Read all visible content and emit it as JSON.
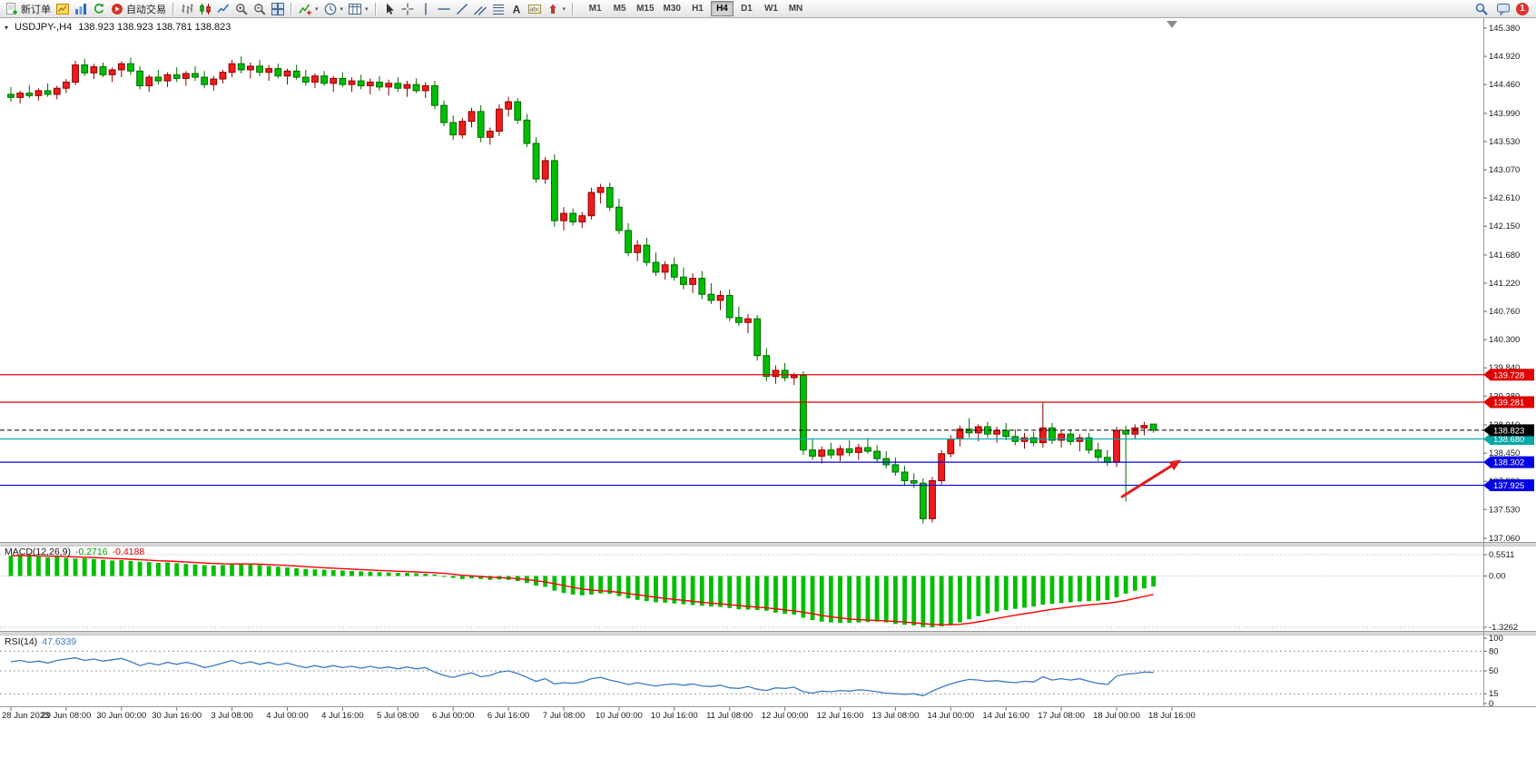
{
  "toolbar": {
    "items": [
      {
        "name": "new-order-button",
        "icon": "new-order-icon",
        "label": "新订单"
      },
      {
        "name": "chart-template-button",
        "icon": "chart-template-icon"
      },
      {
        "name": "market-watch-button",
        "icon": "market-watch-icon"
      },
      {
        "name": "refresh-button",
        "icon": "refresh-icon"
      },
      {
        "name": "auto-trading-button",
        "icon": "auto-trading-icon",
        "label": "自动交易"
      },
      {
        "sep": true
      },
      {
        "name": "bar-chart-button",
        "icon": "bar-chart-icon"
      },
      {
        "name": "candlestick-chart-button",
        "icon": "candlestick-chart-icon"
      },
      {
        "name": "line-chart-button",
        "icon": "line-chart-icon"
      },
      {
        "name": "zoom-in-button",
        "icon": "zoom-in-icon"
      },
      {
        "name": "zoom-out-button",
        "icon": "zoom-out-icon"
      },
      {
        "name": "tile-windows-button",
        "icon": "tile-windows-icon"
      },
      {
        "sep": true
      },
      {
        "name": "indicators-button",
        "icon": "indicators-icon",
        "dropdown": true
      },
      {
        "name": "periods-button",
        "icon": "clock-icon",
        "dropdown": true
      },
      {
        "name": "templates-button",
        "icon": "templates-icon",
        "dropdown": true
      },
      {
        "sep": true
      },
      {
        "name": "cursor-button",
        "icon": "cursor-icon"
      },
      {
        "name": "crosshair-button",
        "icon": "crosshair-icon"
      },
      {
        "name": "vertical-line-button",
        "icon": "vertical-line-icon"
      },
      {
        "name": "horizontal-line-button",
        "icon": "horizontal-line-icon"
      },
      {
        "name": "trendline-button",
        "icon": "trendline-icon"
      },
      {
        "name": "channel-button",
        "icon": "channel-icon"
      },
      {
        "name": "fibonacci-button",
        "icon": "fibonacci-icon"
      },
      {
        "name": "text-button",
        "icon": "text-icon"
      },
      {
        "name": "text-label-button",
        "icon": "text-label-icon"
      },
      {
        "name": "arrows-button",
        "icon": "arrow-up-icon",
        "dropdown": true
      },
      {
        "sep": true
      }
    ],
    "timeframes": [
      "M1",
      "M5",
      "M15",
      "M30",
      "H1",
      "H4",
      "D1",
      "W1",
      "MN"
    ],
    "active_timeframe": "H4",
    "right_icons": [
      "search-icon",
      "chat-icon"
    ],
    "notification_count": "1"
  },
  "chart": {
    "symbol": "USDJPY-,H4",
    "ohlc_text": "138.923 138.923 138.781 138.823",
    "macd_name": "MACD(12,26,9)",
    "macd_main": "-0.2716",
    "macd_signal": "-0.4188",
    "rsi_name": "RSI(14)",
    "rsi_value": "47.6339"
  },
  "chart_data": {
    "type": "candlestick",
    "symbol": "USDJPY",
    "timeframe": "H4",
    "y_range": [
      137.06,
      145.38
    ],
    "price_axis_ticks": [
      "145.380",
      "144.920",
      "144.460",
      "143.990",
      "143.530",
      "143.070",
      "142.610",
      "142.150",
      "141.680",
      "141.220",
      "140.760",
      "140.300",
      "139.840",
      "139.380",
      "138.910",
      "138.450",
      "137.990",
      "137.530",
      "137.060"
    ],
    "time_labels": [
      "28 Jun 2023",
      "29 Jun 08:00",
      "30 Jun 00:00",
      "30 Jun 16:00",
      "3 Jul 08:00",
      "4 Jul 00:00",
      "4 Jul 16:00",
      "5 Jul 08:00",
      "6 Jul 00:00",
      "6 Jul 16:00",
      "7 Jul 08:00",
      "10 Jul 00:00",
      "10 Jul 16:00",
      "11 Jul 08:00",
      "12 Jul 00:00",
      "12 Jul 16:00",
      "13 Jul 08:00",
      "14 Jul 00:00",
      "14 Jul 16:00",
      "17 Jul 08:00",
      "18 Jul 00:00",
      "18 Jul 16:00"
    ],
    "candles_per_label": 6,
    "ohlc": [
      [
        144.3,
        144.42,
        144.18,
        144.25
      ],
      [
        144.25,
        144.36,
        144.15,
        144.32
      ],
      [
        144.32,
        144.45,
        144.24,
        144.28
      ],
      [
        144.28,
        144.4,
        144.2,
        144.36
      ],
      [
        144.36,
        144.48,
        144.26,
        144.3
      ],
      [
        144.3,
        144.44,
        144.22,
        144.4
      ],
      [
        144.4,
        144.55,
        144.32,
        144.5
      ],
      [
        144.5,
        144.85,
        144.45,
        144.78
      ],
      [
        144.78,
        144.88,
        144.6,
        144.65
      ],
      [
        144.65,
        144.8,
        144.55,
        144.75
      ],
      [
        144.75,
        144.82,
        144.58,
        144.62
      ],
      [
        144.62,
        144.74,
        144.5,
        144.7
      ],
      [
        144.7,
        144.84,
        144.58,
        144.8
      ],
      [
        144.8,
        144.9,
        144.62,
        144.68
      ],
      [
        144.68,
        144.76,
        144.38,
        144.44
      ],
      [
        144.44,
        144.62,
        144.34,
        144.58
      ],
      [
        144.58,
        144.7,
        144.46,
        144.52
      ],
      [
        144.52,
        144.66,
        144.42,
        144.62
      ],
      [
        144.62,
        144.74,
        144.5,
        144.56
      ],
      [
        144.56,
        144.68,
        144.44,
        144.64
      ],
      [
        144.64,
        144.76,
        144.52,
        144.58
      ],
      [
        144.58,
        144.68,
        144.4,
        144.46
      ],
      [
        144.46,
        144.6,
        144.36,
        144.55
      ],
      [
        144.55,
        144.7,
        144.48,
        144.66
      ],
      [
        144.66,
        144.86,
        144.58,
        144.8
      ],
      [
        144.8,
        144.92,
        144.64,
        144.7
      ],
      [
        144.7,
        144.82,
        144.56,
        144.76
      ],
      [
        144.76,
        144.86,
        144.6,
        144.66
      ],
      [
        144.66,
        144.78,
        144.52,
        144.72
      ],
      [
        144.72,
        144.8,
        144.56,
        144.6
      ],
      [
        144.6,
        144.72,
        144.46,
        144.68
      ],
      [
        144.68,
        144.78,
        144.54,
        144.58
      ],
      [
        144.58,
        144.7,
        144.44,
        144.5
      ],
      [
        144.5,
        144.64,
        144.4,
        144.6
      ],
      [
        144.6,
        144.68,
        144.44,
        144.48
      ],
      [
        144.48,
        144.6,
        144.34,
        144.56
      ],
      [
        144.56,
        144.66,
        144.42,
        144.46
      ],
      [
        144.46,
        144.58,
        144.34,
        144.52
      ],
      [
        144.52,
        144.62,
        144.38,
        144.44
      ],
      [
        144.44,
        144.56,
        144.3,
        144.5
      ],
      [
        144.5,
        144.6,
        144.36,
        144.42
      ],
      [
        144.42,
        144.54,
        144.28,
        144.48
      ],
      [
        144.48,
        144.58,
        144.34,
        144.4
      ],
      [
        144.4,
        144.52,
        144.26,
        144.46
      ],
      [
        144.46,
        144.56,
        144.32,
        144.36
      ],
      [
        144.36,
        144.5,
        144.24,
        144.44
      ],
      [
        144.44,
        144.52,
        144.06,
        144.12
      ],
      [
        144.12,
        144.2,
        143.78,
        143.84
      ],
      [
        143.84,
        143.96,
        143.56,
        143.64
      ],
      [
        143.64,
        143.92,
        143.58,
        143.86
      ],
      [
        143.86,
        144.08,
        143.76,
        144.02
      ],
      [
        144.02,
        144.12,
        143.52,
        143.6
      ],
      [
        143.6,
        143.76,
        143.48,
        143.7
      ],
      [
        143.7,
        144.14,
        143.62,
        144.06
      ],
      [
        144.06,
        144.26,
        143.94,
        144.18
      ],
      [
        144.18,
        144.24,
        143.82,
        143.88
      ],
      [
        143.88,
        143.98,
        143.44,
        143.5
      ],
      [
        143.5,
        143.6,
        142.86,
        142.92
      ],
      [
        142.92,
        143.28,
        142.84,
        143.22
      ],
      [
        143.22,
        143.32,
        142.14,
        142.24
      ],
      [
        142.24,
        142.46,
        142.08,
        142.36
      ],
      [
        142.36,
        142.44,
        142.16,
        142.22
      ],
      [
        142.22,
        142.38,
        142.12,
        142.32
      ],
      [
        142.32,
        142.78,
        142.26,
        142.7
      ],
      [
        142.7,
        142.84,
        142.52,
        142.78
      ],
      [
        142.78,
        142.86,
        142.4,
        142.46
      ],
      [
        142.46,
        142.6,
        142.02,
        142.08
      ],
      [
        142.08,
        142.2,
        141.66,
        141.72
      ],
      [
        141.72,
        141.92,
        141.58,
        141.84
      ],
      [
        141.84,
        141.96,
        141.5,
        141.56
      ],
      [
        141.56,
        141.72,
        141.34,
        141.4
      ],
      [
        141.4,
        141.58,
        141.28,
        141.52
      ],
      [
        141.52,
        141.64,
        141.26,
        141.32
      ],
      [
        141.32,
        141.48,
        141.12,
        141.2
      ],
      [
        141.2,
        141.38,
        141.06,
        141.3
      ],
      [
        141.3,
        141.42,
        140.96,
        141.04
      ],
      [
        141.04,
        141.22,
        140.88,
        140.94
      ],
      [
        140.94,
        141.1,
        140.78,
        141.02
      ],
      [
        141.02,
        141.12,
        140.6,
        140.66
      ],
      [
        140.66,
        140.84,
        140.52,
        140.58
      ],
      [
        140.58,
        140.72,
        140.4,
        140.64
      ],
      [
        140.64,
        140.7,
        139.96,
        140.04
      ],
      [
        140.04,
        140.16,
        139.62,
        139.7
      ],
      [
        139.7,
        139.88,
        139.58,
        139.8
      ],
      [
        139.8,
        139.92,
        139.62,
        139.68
      ],
      [
        139.68,
        139.76,
        139.56,
        139.72
      ],
      [
        139.72,
        139.78,
        138.42,
        138.5
      ],
      [
        138.5,
        138.68,
        138.34,
        138.4
      ],
      [
        138.4,
        138.56,
        138.28,
        138.5
      ],
      [
        138.5,
        138.62,
        138.36,
        138.42
      ],
      [
        138.42,
        138.58,
        138.32,
        138.52
      ],
      [
        138.52,
        138.66,
        138.4,
        138.46
      ],
      [
        138.46,
        138.6,
        138.34,
        138.54
      ],
      [
        138.54,
        138.7,
        138.44,
        138.48
      ],
      [
        138.48,
        138.58,
        138.3,
        138.36
      ],
      [
        138.36,
        138.48,
        138.2,
        138.26
      ],
      [
        138.26,
        138.38,
        138.08,
        138.14
      ],
      [
        138.14,
        138.24,
        137.92,
        138.0
      ],
      [
        138.0,
        138.12,
        137.88,
        137.96
      ],
      [
        137.96,
        138.04,
        137.3,
        137.38
      ],
      [
        137.38,
        138.06,
        137.32,
        138.0
      ],
      [
        138.0,
        138.5,
        137.94,
        138.44
      ],
      [
        138.44,
        138.74,
        138.38,
        138.68
      ],
      [
        138.68,
        138.9,
        138.56,
        138.84
      ],
      [
        138.84,
        139.02,
        138.7,
        138.78
      ],
      [
        138.78,
        138.92,
        138.64,
        138.88
      ],
      [
        138.88,
        138.96,
        138.7,
        138.76
      ],
      [
        138.76,
        138.88,
        138.62,
        138.82
      ],
      [
        138.82,
        138.94,
        138.66,
        138.72
      ],
      [
        138.72,
        138.84,
        138.58,
        138.64
      ],
      [
        138.64,
        138.78,
        138.52,
        138.7
      ],
      [
        138.7,
        138.8,
        138.56,
        138.62
      ],
      [
        138.62,
        139.27,
        138.54,
        138.86
      ],
      [
        138.86,
        138.94,
        138.6,
        138.66
      ],
      [
        138.66,
        138.82,
        138.54,
        138.76
      ],
      [
        138.76,
        138.84,
        138.58,
        138.64
      ],
      [
        138.64,
        138.76,
        138.48,
        138.7
      ],
      [
        138.7,
        138.78,
        138.44,
        138.5
      ],
      [
        138.5,
        138.62,
        138.32,
        138.38
      ],
      [
        138.38,
        138.5,
        138.24,
        138.3
      ],
      [
        138.3,
        138.88,
        138.22,
        138.82
      ],
      [
        138.82,
        138.9,
        137.66,
        138.76
      ],
      [
        138.76,
        138.92,
        138.68,
        138.86
      ],
      [
        138.86,
        138.96,
        138.74,
        138.9
      ],
      [
        138.923,
        138.923,
        138.781,
        138.823
      ]
    ],
    "levels": [
      {
        "price": 139.728,
        "label": "139.728",
        "color": "#E00000",
        "style": "solid"
      },
      {
        "price": 139.281,
        "label": "139.281",
        "color": "#E00000",
        "style": "solid"
      },
      {
        "price": 138.68,
        "label": "138.680",
        "color": "#00A8A8",
        "style": "solid"
      },
      {
        "price": 138.302,
        "label": "138.302",
        "color": "#0000E6",
        "style": "solid"
      },
      {
        "price": 137.925,
        "label": "137.925",
        "color": "#0000E6",
        "style": "solid"
      },
      {
        "price": 138.823,
        "label": "138.823",
        "color": "#000000",
        "style": "bid"
      }
    ],
    "arrow_annotation": {
      "from_index": 120.5,
      "from_price": 137.73,
      "to_index": 127,
      "to_price": 138.34,
      "color": "#E02020"
    },
    "macd": {
      "params": "12,26,9",
      "axis_ticks": [
        "0.5511",
        "0.00",
        "-1.3262"
      ],
      "axis_values": [
        0.5511,
        0,
        -1.3262
      ],
      "signal_period": 9,
      "histogram": [
        0.52,
        0.55,
        0.53,
        0.5,
        0.48,
        0.5,
        0.47,
        0.45,
        0.46,
        0.44,
        0.42,
        0.4,
        0.41,
        0.39,
        0.37,
        0.36,
        0.34,
        0.35,
        0.33,
        0.31,
        0.3,
        0.28,
        0.27,
        0.28,
        0.3,
        0.32,
        0.3,
        0.28,
        0.26,
        0.24,
        0.22,
        0.2,
        0.18,
        0.17,
        0.16,
        0.15,
        0.14,
        0.13,
        0.12,
        0.11,
        0.1,
        0.09,
        0.08,
        0.08,
        0.07,
        0.06,
        0.04,
        0.0,
        -0.05,
        -0.08,
        -0.06,
        -0.08,
        -0.1,
        -0.09,
        -0.1,
        -0.13,
        -0.18,
        -0.25,
        -0.28,
        -0.38,
        -0.44,
        -0.48,
        -0.5,
        -0.48,
        -0.45,
        -0.46,
        -0.52,
        -0.58,
        -0.62,
        -0.65,
        -0.68,
        -0.69,
        -0.71,
        -0.73,
        -0.75,
        -0.77,
        -0.79,
        -0.8,
        -0.83,
        -0.86,
        -0.87,
        -0.88,
        -0.9,
        -0.95,
        -0.98,
        -1.0,
        -1.08,
        -1.14,
        -1.18,
        -1.2,
        -1.21,
        -1.21,
        -1.2,
        -1.19,
        -1.18,
        -1.2,
        -1.24,
        -1.26,
        -1.28,
        -1.32,
        -1.3262,
        -1.3,
        -1.26,
        -1.2,
        -1.12,
        -1.04,
        -0.97,
        -0.92,
        -0.88,
        -0.85,
        -0.82,
        -0.79,
        -0.74,
        -0.72,
        -0.7,
        -0.68,
        -0.66,
        -0.65,
        -0.64,
        -0.62,
        -0.55,
        -0.46,
        -0.38,
        -0.32,
        -0.2716
      ]
    },
    "rsi": {
      "period": 14,
      "axis_ticks": [
        "100",
        "80",
        "50",
        "15",
        "0"
      ],
      "axis_values": [
        100,
        80,
        50,
        15,
        0
      ],
      "levels": [
        80,
        50,
        15
      ],
      "values": [
        64,
        66,
        63,
        65,
        62,
        66,
        68,
        70,
        66,
        68,
        65,
        67,
        69,
        64,
        58,
        62,
        59,
        63,
        60,
        63,
        60,
        55,
        58,
        62,
        66,
        61,
        64,
        60,
        63,
        59,
        62,
        58,
        55,
        58,
        55,
        58,
        55,
        57,
        54,
        57,
        54,
        56,
        53,
        56,
        53,
        55,
        48,
        43,
        40,
        44,
        47,
        41,
        43,
        48,
        50,
        46,
        40,
        34,
        38,
        30,
        32,
        31,
        33,
        38,
        40,
        36,
        33,
        29,
        32,
        29,
        27,
        29,
        30,
        28,
        30,
        27,
        26,
        28,
        24,
        23,
        26,
        22,
        20,
        24,
        23,
        25,
        18,
        16,
        19,
        18,
        20,
        19,
        21,
        20,
        18,
        16,
        15,
        14,
        15,
        12,
        19,
        25,
        30,
        34,
        37,
        36,
        34,
        35,
        33,
        32,
        34,
        33,
        41,
        36,
        38,
        36,
        38,
        34,
        31,
        29,
        42,
        45,
        46,
        48,
        47.6
      ]
    },
    "colors": {
      "bull": "#EE1C1C",
      "bull_border": "#8F0000",
      "bear": "#00BE00",
      "bear_border": "#006A00",
      "macd_histogram": "#00BE00",
      "macd_signal": "#FF0000",
      "rsi_line": "#3B7BBF"
    }
  }
}
